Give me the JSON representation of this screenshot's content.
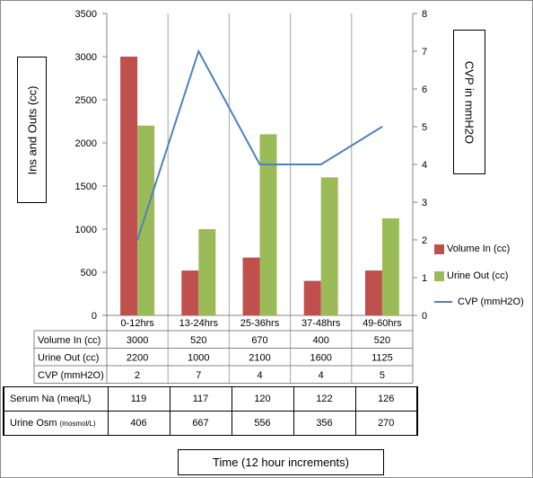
{
  "chart_data": {
    "type": "bar",
    "categories": [
      "0-12hrs",
      "13-24hrs",
      "25-36hrs",
      "37-48hrs",
      "49-60hrs"
    ],
    "series": [
      {
        "name": "Volume In (cc)",
        "values": [
          3000,
          520,
          670,
          400,
          520
        ],
        "color": "#c0504d",
        "kind": "bar",
        "axis": "left"
      },
      {
        "name": "Urine Out (cc)",
        "values": [
          2200,
          1000,
          2100,
          1600,
          1125
        ],
        "color": "#9bbb59",
        "kind": "bar",
        "axis": "left"
      },
      {
        "name": "CVP (mmH2O)",
        "values": [
          2,
          7,
          4,
          4,
          5
        ],
        "color": "#4f81bd",
        "kind": "line",
        "axis": "right"
      }
    ],
    "ylabel": "Ins and Outs (cc)",
    "y2label": "CVP in mmH2O",
    "xlabel": "Time (12 hour increments)",
    "ylim": [
      0,
      3500
    ],
    "y2lim": [
      0,
      8
    ],
    "yticks": [
      "0",
      "500",
      "1000",
      "1500",
      "2000",
      "2500",
      "3000",
      "3500"
    ],
    "y2ticks": [
      "0",
      "1",
      "2",
      "3",
      "4",
      "5",
      "6",
      "7",
      "8"
    ],
    "grid": "vertical category separators",
    "legend": "right",
    "data_table": [
      {
        "label": "Volume In (cc)",
        "values": [
          "3000",
          "520",
          "670",
          "400",
          "520"
        ]
      },
      {
        "label": "Urine Out (cc)",
        "values": [
          "2200",
          "1000",
          "2100",
          "1600",
          "1125"
        ]
      },
      {
        "label": "CVP (mmH2O)",
        "values": [
          "2",
          "7",
          "4",
          "4",
          "5"
        ]
      }
    ]
  },
  "extra_table": {
    "rows": [
      {
        "label": "Serum Na (meq/L)",
        "label_small": "",
        "values": [
          "119",
          "117",
          "120",
          "122",
          "126"
        ]
      },
      {
        "label": "Urine Osm ",
        "label_small": "(mosmol/L)",
        "values": [
          "406",
          "667",
          "556",
          "356",
          "270"
        ]
      }
    ]
  }
}
